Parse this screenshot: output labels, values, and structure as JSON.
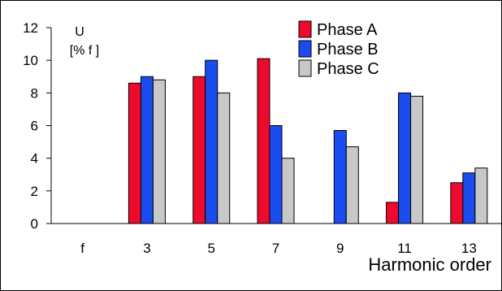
{
  "chart_data": {
    "type": "bar",
    "categories": [
      "f",
      "3",
      "5",
      "7",
      "9",
      "11",
      "13"
    ],
    "series": [
      {
        "name": "Phase A",
        "color": "#ee0a2d",
        "values": [
          null,
          8.6,
          9.0,
          10.1,
          null,
          1.3,
          2.5
        ]
      },
      {
        "name": "Phase B",
        "color": "#1a4cf0",
        "values": [
          null,
          9.0,
          10.0,
          6.0,
          5.7,
          8.0,
          3.1
        ]
      },
      {
        "name": "Phase C",
        "color": "#c8c8c8",
        "values": [
          null,
          8.8,
          8.0,
          4.0,
          4.7,
          7.8,
          3.4
        ]
      }
    ],
    "ylabel_line1": "U",
    "ylabel_line2": "[% f ]",
    "xlabel": "Harmonic order",
    "yticks": [
      0,
      2,
      4,
      6,
      8,
      10,
      12
    ],
    "ylim": [
      0,
      12
    ],
    "legend_position": "top-right",
    "grid": false
  }
}
